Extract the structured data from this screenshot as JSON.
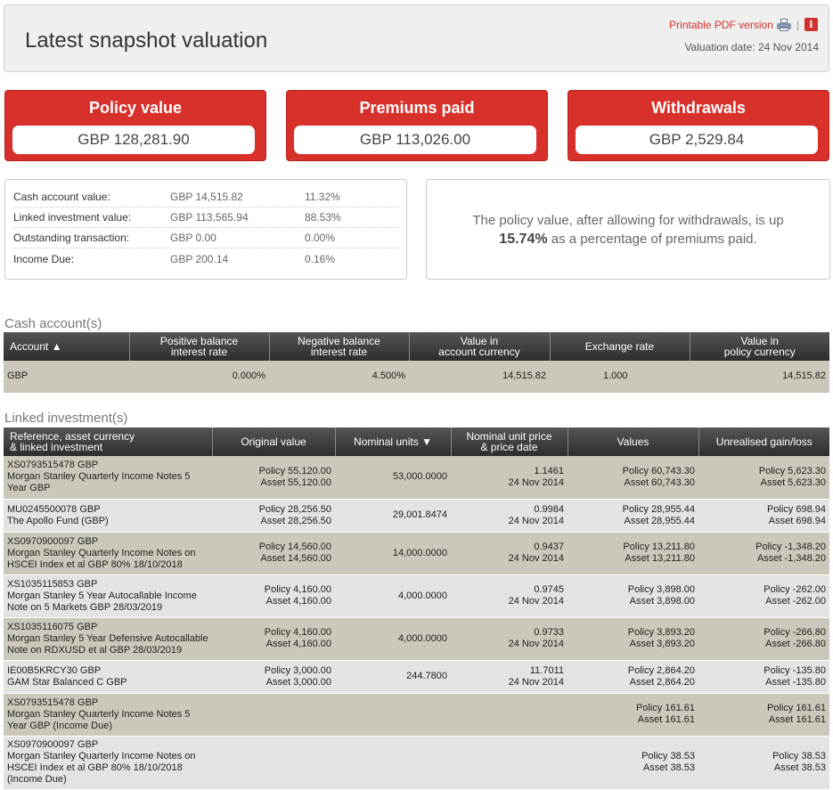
{
  "header": {
    "title": "Latest snapshot valuation",
    "pdf_link": "Printable PDF version",
    "separator": "|",
    "info_glyph": "i",
    "valuation_date": "Valuation date: 24 Nov 2014"
  },
  "tiles": [
    {
      "label": "Policy value",
      "value": "GBP 128,281.90"
    },
    {
      "label": "Premiums paid",
      "value": "GBP 113,026.00"
    },
    {
      "label": "Withdrawals",
      "value": "GBP 2,529.84"
    }
  ],
  "breakdown": [
    {
      "label": "Cash account value:",
      "amount": "GBP 14,515.82",
      "pct": "11.32%"
    },
    {
      "label": "Linked investment value:",
      "amount": "GBP 113,565.94",
      "pct": "88.53%"
    },
    {
      "label": "Outstanding transaction:",
      "amount": "GBP 0.00",
      "pct": "0.00%"
    },
    {
      "label": "Income Due:",
      "amount": "GBP 200.14",
      "pct": "0.16%"
    }
  ],
  "summary": {
    "text_before": "The policy value, after allowing for withdrawals, is up",
    "highlight": "15.74%",
    "text_after": "as a percentage of premiums paid."
  },
  "cash": {
    "section_title": "Cash account(s)",
    "headers": [
      "Account ▲",
      "Positive balance\ninterest rate",
      "Negative balance\ninterest rate",
      "Value in\naccount currency",
      "Exchange rate",
      "Value in\npolicy currency"
    ],
    "rows": [
      {
        "account": "GBP",
        "pos_rate": "0.000%",
        "neg_rate": "4.500%",
        "value_acct": "14,515.82",
        "fx": "1.000",
        "value_policy": "14,515.82"
      }
    ]
  },
  "linked": {
    "section_title": "Linked investment(s)",
    "headers": [
      "Reference, asset currency\n& linked investment",
      "Original value",
      "Nominal units ▼",
      "Nominal unit price\n& price date",
      "Values",
      "Unrealised gain/loss"
    ],
    "rows": [
      {
        "ref": "XS0793515478 GBP\nMorgan Stanley Quarterly Income Notes 5\nYear GBP",
        "orig": "Policy 55,120.00\nAsset 55,120.00",
        "units": "53,000.0000",
        "price": "1.1461\n24 Nov 2014",
        "values": "Policy 60,743.30\nAsset 60,743.30",
        "gain": "Policy 5,623.30\nAsset 5,623.30"
      },
      {
        "ref": "MU0245500078 GBP\nThe Apollo Fund (GBP)",
        "orig": "Policy 28,256.50\nAsset 28,256.50",
        "units": "29,001.8474",
        "price": "0.9984\n24 Nov 2014",
        "values": "Policy 28,955.44\nAsset 28,955.44",
        "gain": "Policy 698.94\nAsset 698.94"
      },
      {
        "ref": "XS0970900097 GBP\nMorgan Stanley Quarterly Income Notes on\nHSCEI Index et al GBP 80% 18/10/2018",
        "orig": "Policy 14,560.00\nAsset 14,560.00",
        "units": "14,000.0000",
        "price": "0.9437\n24 Nov 2014",
        "values": "Policy 13,211.80\nAsset 13,211.80",
        "gain": "Policy -1,348.20\nAsset -1,348.20"
      },
      {
        "ref": "XS1035115853 GBP\nMorgan Stanley 5 Year Autocallable Income\nNote on 5 Markets GBP 28/03/2019",
        "orig": "Policy 4,160.00\nAsset 4,160.00",
        "units": "4,000.0000",
        "price": "0.9745\n24 Nov 2014",
        "values": "Policy 3,898.00\nAsset 3,898.00",
        "gain": "Policy -262.00\nAsset -262.00"
      },
      {
        "ref": "XS1035116075 GBP\nMorgan Stanley 5 Year Defensive Autocallable\nNote on RDXUSD et al GBP 28/03/2019",
        "orig": "Policy 4,160.00\nAsset 4,160.00",
        "units": "4,000.0000",
        "price": "0.9733\n24 Nov 2014",
        "values": "Policy 3,893.20\nAsset 3,893.20",
        "gain": "Policy -266.80\nAsset -266.80"
      },
      {
        "ref": "IE00B5KRCY30 GBP\nGAM Star Balanced C GBP",
        "orig": "Policy 3,000.00\nAsset 3,000.00",
        "units": "244.7800",
        "price": "11.7011\n24 Nov 2014",
        "values": "Policy 2,864.20\nAsset 2,864.20",
        "gain": "Policy -135.80\nAsset -135.80"
      },
      {
        "ref": "XS0793515478 GBP\nMorgan Stanley Quarterly Income Notes 5\nYear GBP (Income Due)",
        "orig": "",
        "units": "",
        "price": "",
        "values": "Policy 161.61\nAsset 161.61",
        "gain": "Policy 161.61\nAsset 161.61"
      },
      {
        "ref": "XS0970900097 GBP\nMorgan Stanley Quarterly Income Notes on\nHSCEI Index et al GBP 80% 18/10/2018\n(Income Due)",
        "orig": "",
        "units": "",
        "price": "",
        "values": "Policy 38.53\nAsset 38.53",
        "gain": "Policy 38.53\nAsset 38.53"
      }
    ]
  }
}
